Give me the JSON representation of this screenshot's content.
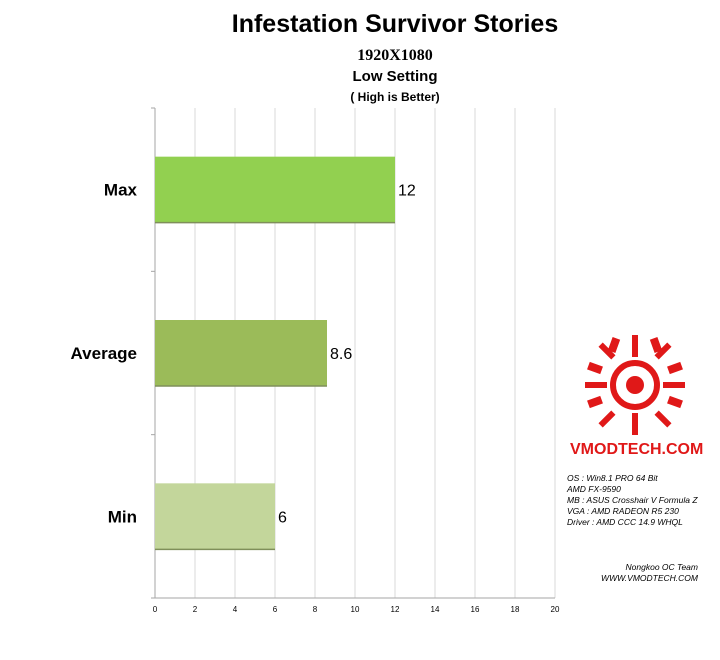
{
  "chart_data": {
    "type": "bar",
    "orientation": "horizontal",
    "title": "Infestation Survivor Stories",
    "subtitles": [
      "1920X1080",
      "Low Setting",
      "( High is Better)"
    ],
    "categories": [
      "Max",
      "Average",
      "Min"
    ],
    "values": [
      12,
      8.6,
      6
    ],
    "value_labels": [
      "12",
      "8.6",
      "6"
    ],
    "bar_colors": [
      "#92d050",
      "#9bbb59",
      "#c3d69b"
    ],
    "xlim": [
      0,
      20
    ],
    "x_ticks": [
      "0",
      "2",
      "4",
      "6",
      "8",
      "10",
      "12",
      "14",
      "16",
      "18",
      "20"
    ],
    "grid": true
  },
  "watermark": {
    "logo_text": "VMODTECH.COM",
    "specs": [
      "OS : Win8.1 PRO 64 Bit",
      "AMD FX-9590",
      "MB : ASUS Crosshair V Formula Z",
      "VGA : AMD RADEON R5 230",
      "Driver : AMD CCC 14.9 WHQL"
    ],
    "credit": [
      "Nongkoo OC Team",
      "WWW.VMODTECH.COM"
    ]
  },
  "colors": {
    "logo_red": "#e01818",
    "grid": "#d9d9d9",
    "axis": "#a6a6a6"
  }
}
